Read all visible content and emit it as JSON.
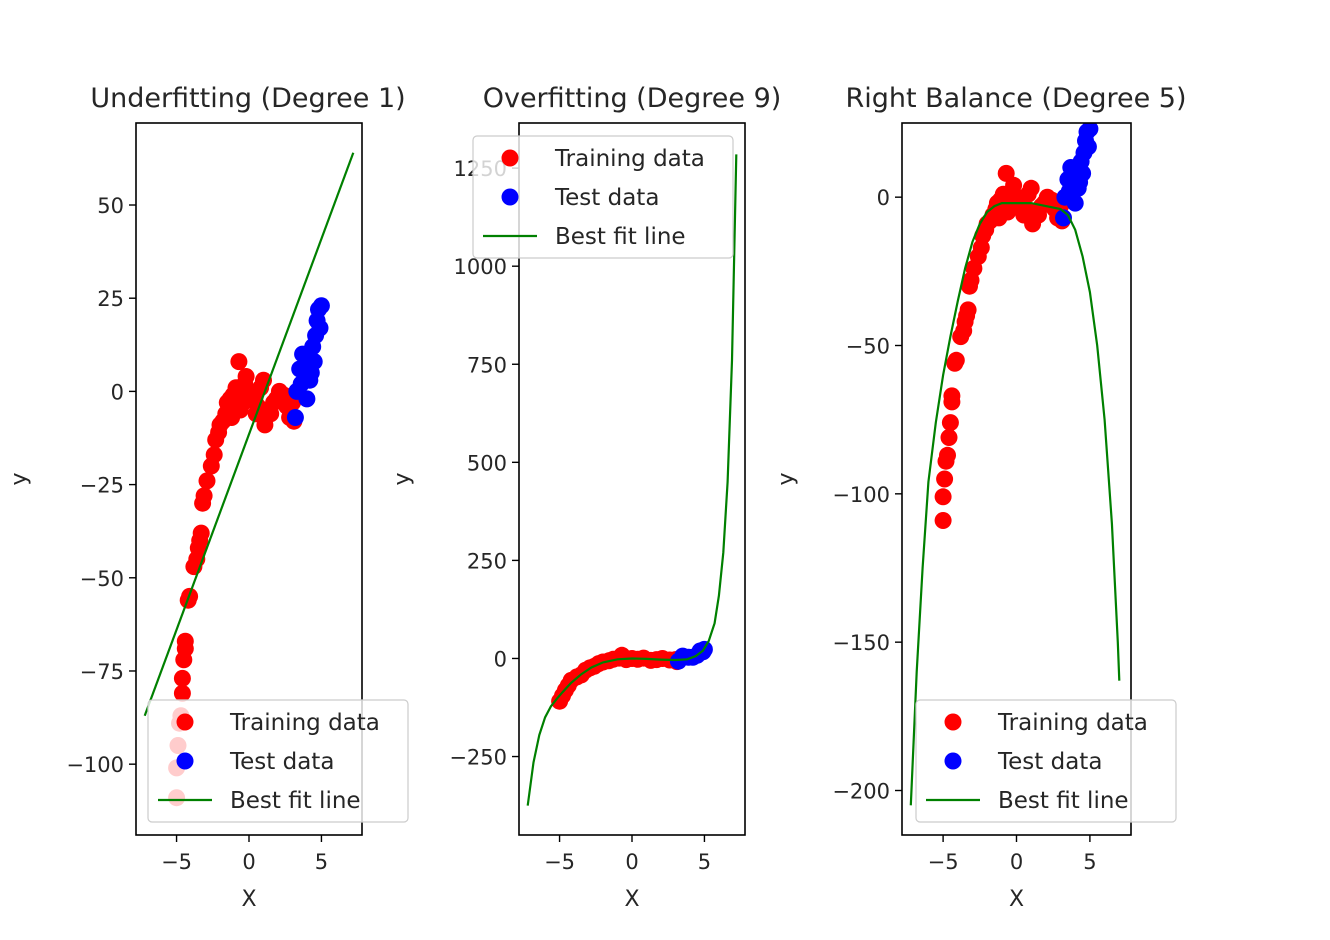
{
  "figure": {
    "background": "#ffffff",
    "colors": {
      "training": "#ff0000",
      "test": "#0000ff",
      "fit": "#008000"
    }
  },
  "chart_data": [
    {
      "type": "scatter",
      "title": "Underfitting (Degree 1)",
      "xlabel": "X",
      "ylabel": "y",
      "xlim": [
        -7.8,
        7.8
      ],
      "ylim": [
        -119,
        72
      ],
      "xticks": [
        -5,
        0,
        5
      ],
      "xtick_labels": [
        "−5",
        "0",
        "5"
      ],
      "yticks": [
        50,
        25,
        0,
        -25,
        -50,
        -75,
        -100
      ],
      "ytick_labels": [
        "50",
        "25",
        "0",
        "−25",
        "−50",
        "−75",
        "−100"
      ],
      "legend": {
        "placement": "lower right",
        "entries": [
          "Training data",
          "Test data",
          "Best fit line"
        ]
      },
      "series": [
        {
          "name": "Training data",
          "kind": "scatter",
          "color": "#ff0000",
          "points": [
            [
              -5.0,
              -109
            ],
            [
              -5.0,
              -101
            ],
            [
              -4.9,
              -95
            ],
            [
              -4.8,
              -89
            ],
            [
              -4.7,
              -87
            ],
            [
              -4.6,
              -81
            ],
            [
              -4.6,
              -77
            ],
            [
              -4.5,
              -72
            ],
            [
              -4.4,
              -69
            ],
            [
              -4.4,
              -67
            ],
            [
              -4.2,
              -56
            ],
            [
              -4.1,
              -55
            ],
            [
              -3.8,
              -47
            ],
            [
              -3.6,
              -45
            ],
            [
              -3.5,
              -42
            ],
            [
              -3.4,
              -40
            ],
            [
              -3.3,
              -38
            ],
            [
              -3.2,
              -30
            ],
            [
              -3.1,
              -28
            ],
            [
              -2.9,
              -24
            ],
            [
              -2.6,
              -20
            ],
            [
              -2.4,
              -17
            ],
            [
              -2.3,
              -13
            ],
            [
              -2.1,
              -11
            ],
            [
              -2.0,
              -9
            ],
            [
              -1.8,
              -8
            ],
            [
              -1.6,
              -6
            ],
            [
              -1.4,
              -4
            ],
            [
              -1.3,
              -2
            ],
            [
              -1.1,
              -1
            ],
            [
              -0.9,
              1
            ],
            [
              -0.7,
              8
            ],
            [
              -0.6,
              -5
            ],
            [
              -0.4,
              -3
            ],
            [
              -0.3,
              2
            ],
            [
              -0.2,
              4
            ],
            [
              0.0,
              0
            ],
            [
              0.2,
              -1
            ],
            [
              0.4,
              -2
            ],
            [
              0.6,
              -4
            ],
            [
              0.8,
              1
            ],
            [
              1.0,
              3
            ],
            [
              1.3,
              -5
            ],
            [
              1.5,
              -6
            ],
            [
              1.7,
              -3
            ],
            [
              1.9,
              -2
            ],
            [
              2.1,
              0
            ],
            [
              2.4,
              -1
            ],
            [
              2.6,
              -4
            ],
            [
              2.8,
              -7
            ],
            [
              3.0,
              -3
            ],
            [
              3.1,
              -8
            ],
            [
              -1.2,
              -7
            ],
            [
              -1.5,
              -3
            ],
            [
              0.5,
              -6
            ],
            [
              1.1,
              -9
            ]
          ]
        },
        {
          "name": "Test data",
          "kind": "scatter",
          "color": "#0000ff",
          "points": [
            [
              3.2,
              -7
            ],
            [
              3.3,
              0
            ],
            [
              3.5,
              6
            ],
            [
              3.7,
              10
            ],
            [
              3.9,
              3
            ],
            [
              4.0,
              -2
            ],
            [
              4.1,
              9
            ],
            [
              4.2,
              3
            ],
            [
              4.4,
              12
            ],
            [
              4.5,
              8
            ],
            [
              4.6,
              15
            ],
            [
              4.7,
              19
            ],
            [
              4.8,
              22
            ],
            [
              4.9,
              17
            ],
            [
              5.0,
              23
            ],
            [
              3.6,
              2
            ],
            [
              4.3,
              5
            ]
          ]
        },
        {
          "name": "Best fit line",
          "kind": "line",
          "color": "#008000",
          "points": [
            [
              -7.2,
              -87
            ],
            [
              7.2,
              64
            ]
          ]
        }
      ]
    },
    {
      "type": "scatter",
      "title": "Overfitting (Degree 9)",
      "xlabel": "X",
      "ylabel": "y",
      "xlim": [
        -7.8,
        7.8
      ],
      "ylim": [
        -450,
        1365
      ],
      "xticks": [
        -5,
        0,
        5
      ],
      "xtick_labels": [
        "−5",
        "0",
        "5"
      ],
      "yticks": [
        1250,
        1000,
        750,
        500,
        250,
        0,
        -250
      ],
      "ytick_labels": [
        "1250",
        "1000",
        "750",
        "500",
        "250",
        "0",
        "−250"
      ],
      "legend": {
        "placement": "upper right",
        "entries": [
          "Training data",
          "Test data",
          "Best fit line"
        ]
      },
      "series": [
        {
          "name": "Training data",
          "kind": "scatter",
          "color": "#ff0000",
          "points": [
            [
              -5.0,
              -109
            ],
            [
              -4.8,
              -95
            ],
            [
              -4.6,
              -81
            ],
            [
              -4.4,
              -69
            ],
            [
              -4.2,
              -56
            ],
            [
              -3.8,
              -47
            ],
            [
              -3.5,
              -42
            ],
            [
              -3.2,
              -30
            ],
            [
              -2.9,
              -24
            ],
            [
              -2.6,
              -20
            ],
            [
              -2.3,
              -13
            ],
            [
              -2.0,
              -9
            ],
            [
              -1.6,
              -6
            ],
            [
              -1.3,
              -2
            ],
            [
              -0.9,
              1
            ],
            [
              -0.7,
              8
            ],
            [
              -0.4,
              -3
            ],
            [
              0.0,
              0
            ],
            [
              0.4,
              -2
            ],
            [
              0.8,
              1
            ],
            [
              1.3,
              -5
            ],
            [
              1.7,
              -3
            ],
            [
              2.1,
              0
            ],
            [
              2.6,
              -4
            ],
            [
              3.0,
              -3
            ],
            [
              3.1,
              -8
            ]
          ]
        },
        {
          "name": "Test data",
          "kind": "scatter",
          "color": "#0000ff",
          "points": [
            [
              3.2,
              -7
            ],
            [
              3.5,
              6
            ],
            [
              3.9,
              3
            ],
            [
              4.2,
              3
            ],
            [
              4.5,
              8
            ],
            [
              4.7,
              19
            ],
            [
              4.9,
              17
            ],
            [
              5.0,
              23
            ]
          ]
        },
        {
          "name": "Best fit line",
          "kind": "line",
          "color": "#008000",
          "points": [
            [
              -7.2,
              -375
            ],
            [
              -6.8,
              -265
            ],
            [
              -6.4,
              -195
            ],
            [
              -6.0,
              -150
            ],
            [
              -5.6,
              -122
            ],
            [
              -5.2,
              -103
            ],
            [
              -4.8,
              -86
            ],
            [
              -4.2,
              -62
            ],
            [
              -3.5,
              -40
            ],
            [
              -2.8,
              -23
            ],
            [
              -2.0,
              -10
            ],
            [
              -1.0,
              -2
            ],
            [
              0.0,
              0
            ],
            [
              1.0,
              -1
            ],
            [
              2.0,
              -3
            ],
            [
              3.0,
              -4
            ],
            [
              3.8,
              -2
            ],
            [
              4.4,
              6
            ],
            [
              4.9,
              20
            ],
            [
              5.3,
              45
            ],
            [
              5.7,
              90
            ],
            [
              6.0,
              160
            ],
            [
              6.3,
              270
            ],
            [
              6.6,
              450
            ],
            [
              6.9,
              760
            ],
            [
              7.2,
              1285
            ]
          ]
        }
      ]
    },
    {
      "type": "scatter",
      "title": "Right Balance (Degree 5)",
      "xlabel": "X",
      "ylabel": "y",
      "xlim": [
        -7.8,
        7.8
      ],
      "ylim": [
        -215,
        25
      ],
      "xticks": [
        -5,
        0,
        5
      ],
      "xtick_labels": [
        "−5",
        "0",
        "5"
      ],
      "yticks": [
        0,
        -50,
        -100,
        -150,
        -200
      ],
      "ytick_labels": [
        "0",
        "−50",
        "−100",
        "−150",
        "−200"
      ],
      "legend": {
        "placement": "lower right",
        "entries": [
          "Training data",
          "Test data",
          "Best fit line"
        ]
      },
      "series": [
        {
          "name": "Training data",
          "kind": "scatter",
          "color": "#ff0000",
          "points": [
            [
              -5.0,
              -109
            ],
            [
              -5.0,
              -101
            ],
            [
              -4.9,
              -95
            ],
            [
              -4.8,
              -89
            ],
            [
              -4.7,
              -87
            ],
            [
              -4.6,
              -81
            ],
            [
              -4.5,
              -76
            ],
            [
              -4.4,
              -69
            ],
            [
              -4.4,
              -67
            ],
            [
              -4.2,
              -56
            ],
            [
              -4.1,
              -55
            ],
            [
              -3.8,
              -47
            ],
            [
              -3.6,
              -45
            ],
            [
              -3.5,
              -42
            ],
            [
              -3.4,
              -40
            ],
            [
              -3.3,
              -38
            ],
            [
              -3.2,
              -30
            ],
            [
              -3.1,
              -28
            ],
            [
              -2.9,
              -24
            ],
            [
              -2.6,
              -20
            ],
            [
              -2.4,
              -17
            ],
            [
              -2.3,
              -13
            ],
            [
              -2.1,
              -11
            ],
            [
              -2.0,
              -9
            ],
            [
              -1.8,
              -8
            ],
            [
              -1.6,
              -6
            ],
            [
              -1.4,
              -4
            ],
            [
              -1.3,
              -2
            ],
            [
              -1.1,
              -1
            ],
            [
              -0.9,
              1
            ],
            [
              -0.7,
              8
            ],
            [
              -0.6,
              -5
            ],
            [
              -0.4,
              -3
            ],
            [
              -0.3,
              2
            ],
            [
              -0.2,
              4
            ],
            [
              0.0,
              0
            ],
            [
              0.2,
              -1
            ],
            [
              0.4,
              -2
            ],
            [
              0.6,
              -4
            ],
            [
              0.8,
              1
            ],
            [
              1.0,
              3
            ],
            [
              1.3,
              -5
            ],
            [
              1.5,
              -6
            ],
            [
              1.7,
              -3
            ],
            [
              1.9,
              -2
            ],
            [
              2.1,
              0
            ],
            [
              2.4,
              -1
            ],
            [
              2.6,
              -4
            ],
            [
              2.8,
              -7
            ],
            [
              3.0,
              -3
            ],
            [
              3.1,
              -8
            ],
            [
              -1.2,
              -7
            ],
            [
              0.5,
              -6
            ],
            [
              1.1,
              -9
            ]
          ]
        },
        {
          "name": "Test data",
          "kind": "scatter",
          "color": "#0000ff",
          "points": [
            [
              3.2,
              -7
            ],
            [
              3.3,
              0
            ],
            [
              3.5,
              6
            ],
            [
              3.7,
              10
            ],
            [
              3.9,
              3
            ],
            [
              4.0,
              -2
            ],
            [
              4.1,
              9
            ],
            [
              4.2,
              3
            ],
            [
              4.4,
              12
            ],
            [
              4.5,
              8
            ],
            [
              4.6,
              15
            ],
            [
              4.7,
              19
            ],
            [
              4.8,
              22
            ],
            [
              4.9,
              17
            ],
            [
              5.0,
              23
            ],
            [
              3.6,
              2
            ],
            [
              4.3,
              5
            ]
          ]
        },
        {
          "name": "Best fit line",
          "kind": "line",
          "color": "#008000",
          "points": [
            [
              -7.2,
              -205
            ],
            [
              -6.8,
              -160
            ],
            [
              -6.4,
              -125
            ],
            [
              -6.0,
              -96
            ],
            [
              -5.5,
              -76
            ],
            [
              -5.0,
              -60
            ],
            [
              -4.5,
              -47
            ],
            [
              -4.0,
              -35
            ],
            [
              -3.5,
              -24
            ],
            [
              -3.0,
              -15
            ],
            [
              -2.5,
              -9
            ],
            [
              -2.0,
              -5
            ],
            [
              -1.5,
              -3
            ],
            [
              -1.0,
              -2
            ],
            [
              0.0,
              -2
            ],
            [
              1.0,
              -2
            ],
            [
              2.0,
              -3
            ],
            [
              3.0,
              -4
            ],
            [
              3.5,
              -6
            ],
            [
              4.0,
              -11
            ],
            [
              4.5,
              -20
            ],
            [
              5.0,
              -32
            ],
            [
              5.5,
              -50
            ],
            [
              6.0,
              -75
            ],
            [
              6.5,
              -110
            ],
            [
              6.9,
              -150
            ],
            [
              7.0,
              -163
            ]
          ]
        }
      ]
    }
  ]
}
